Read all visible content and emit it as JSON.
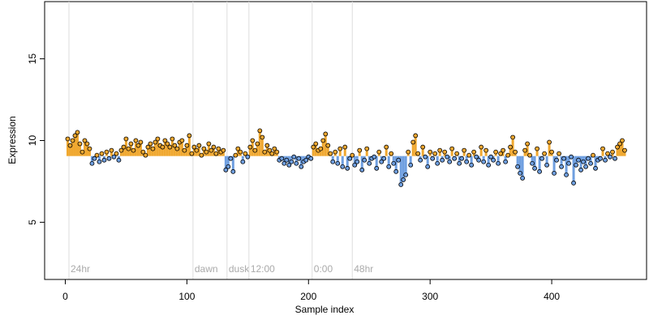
{
  "chart_data": {
    "type": "lollipop",
    "x_label": "Sample index",
    "y_label": "Expression",
    "xlim": [
      -17,
      478
    ],
    "ylim": [
      1.5,
      18.5
    ],
    "xticks": [
      0,
      100,
      200,
      300,
      400
    ],
    "yticks": [
      5,
      10,
      15
    ],
    "baseline": 9.05,
    "above_color": "#f0a830",
    "below_color": "#6f9fe0",
    "annotations": [
      {
        "x": 3,
        "label": "24hr"
      },
      {
        "x": 105,
        "label": "dawn"
      },
      {
        "x": 133,
        "label": "dusk"
      },
      {
        "x": 151,
        "label": "12:00"
      },
      {
        "x": 203,
        "label": "0:00"
      },
      {
        "x": 236,
        "label": "48hr"
      }
    ],
    "x": [
      2,
      4,
      6,
      8,
      10,
      12,
      14,
      16,
      18,
      20,
      22,
      24,
      26,
      28,
      30,
      32,
      34,
      36,
      38,
      40,
      42,
      44,
      46,
      48,
      50,
      52,
      54,
      56,
      58,
      60,
      62,
      64,
      66,
      68,
      70,
      72,
      74,
      76,
      78,
      80,
      82,
      84,
      86,
      88,
      90,
      92,
      94,
      96,
      98,
      100,
      102,
      104,
      106,
      108,
      110,
      112,
      114,
      116,
      118,
      120,
      122,
      124,
      126,
      128,
      130,
      132,
      134,
      136,
      138,
      140,
      142,
      144,
      146,
      148,
      150,
      152,
      154,
      156,
      158,
      160,
      162,
      164,
      166,
      168,
      170,
      172,
      174,
      176,
      178,
      180,
      182,
      184,
      186,
      188,
      190,
      192,
      194,
      196,
      198,
      200,
      202,
      204,
      206,
      208,
      210,
      212,
      214,
      216,
      218,
      220,
      222,
      224,
      226,
      228,
      230,
      232,
      234,
      236,
      238,
      240,
      242,
      244,
      246,
      248,
      250,
      252,
      254,
      256,
      258,
      260,
      262,
      264,
      266,
      268,
      270,
      272,
      274,
      276,
      278,
      280,
      282,
      284,
      286,
      288,
      290,
      292,
      294,
      296,
      298,
      300,
      302,
      304,
      306,
      308,
      310,
      312,
      314,
      316,
      318,
      320,
      322,
      324,
      326,
      328,
      330,
      332,
      334,
      336,
      338,
      340,
      342,
      344,
      346,
      348,
      350,
      352,
      354,
      356,
      358,
      360,
      362,
      364,
      366,
      368,
      370,
      372,
      374,
      376,
      378,
      380,
      382,
      384,
      386,
      388,
      390,
      392,
      394,
      396,
      398,
      400,
      402,
      404,
      406,
      408,
      410,
      412,
      414,
      416,
      418,
      420,
      422,
      424,
      426,
      428,
      430,
      432,
      434,
      436,
      438,
      440,
      442,
      444,
      446,
      448,
      450,
      452,
      454,
      456,
      458,
      460
    ],
    "values": [
      10.1,
      9.7,
      10.0,
      10.3,
      10.5,
      9.8,
      9.3,
      10.0,
      9.8,
      9.5,
      8.6,
      8.9,
      9.1,
      8.7,
      9.2,
      8.8,
      9.3,
      8.9,
      9.4,
      9.0,
      9.2,
      8.8,
      9.4,
      9.6,
      10.1,
      9.5,
      9.8,
      9.4,
      10.0,
      9.7,
      9.9,
      9.3,
      9.1,
      9.6,
      9.8,
      9.5,
      9.9,
      10.1,
      9.7,
      9.6,
      10.0,
      9.8,
      9.6,
      10.1,
      9.7,
      9.5,
      9.9,
      10.0,
      9.4,
      9.7,
      10.3,
      9.2,
      9.6,
      9.4,
      9.7,
      9.1,
      9.5,
      9.3,
      9.8,
      9.4,
      9.6,
      9.2,
      9.5,
      9.3,
      9.4,
      8.2,
      8.4,
      8.9,
      8.1,
      9.1,
      9.5,
      9.3,
      8.7,
      9.2,
      9.0,
      9.6,
      10.0,
      9.4,
      9.8,
      10.6,
      10.2,
      9.3,
      9.7,
      9.4,
      9.2,
      9.5,
      9.3,
      8.8,
      8.9,
      8.6,
      8.8,
      8.5,
      8.7,
      9.0,
      8.6,
      8.9,
      8.4,
      8.7,
      8.8,
      9.0,
      8.9,
      9.6,
      9.8,
      9.4,
      9.5,
      10.0,
      10.4,
      9.7,
      9.2,
      8.7,
      9.3,
      8.6,
      9.5,
      8.4,
      9.6,
      8.3,
      8.9,
      9.1,
      8.5,
      8.7,
      9.4,
      8.2,
      8.8,
      9.5,
      8.6,
      8.9,
      9.0,
      8.3,
      9.3,
      8.7,
      8.9,
      9.6,
      8.4,
      9.2,
      8.6,
      8.1,
      8.8,
      7.3,
      7.6,
      7.9,
      9.3,
      8.5,
      9.9,
      10.3,
      9.2,
      8.8,
      9.6,
      9.0,
      8.4,
      9.3,
      8.9,
      9.2,
      8.6,
      9.4,
      8.8,
      9.3,
      9.0,
      8.7,
      9.5,
      8.9,
      9.2,
      8.6,
      8.9,
      9.4,
      8.7,
      9.1,
      8.5,
      9.3,
      9.0,
      8.8,
      9.6,
      8.7,
      9.4,
      8.5,
      9.0,
      8.8,
      9.3,
      8.6,
      9.2,
      9.4,
      8.7,
      9.1,
      9.6,
      10.2,
      9.3,
      8.4,
      8.0,
      7.7,
      9.4,
      9.8,
      9.1,
      8.6,
      8.3,
      9.5,
      8.1,
      8.9,
      9.2,
      8.5,
      9.9,
      9.3,
      8.0,
      8.8,
      9.2,
      8.4,
      8.9,
      7.9,
      8.6,
      9.0,
      7.4,
      8.5,
      8.8,
      8.2,
      8.7,
      8.4,
      8.9,
      8.6,
      9.1,
      8.3,
      8.8,
      8.9,
      9.5,
      8.8,
      9.2,
      9.0,
      9.3,
      8.9,
      9.6,
      9.8,
      10.0,
      9.4
    ]
  }
}
